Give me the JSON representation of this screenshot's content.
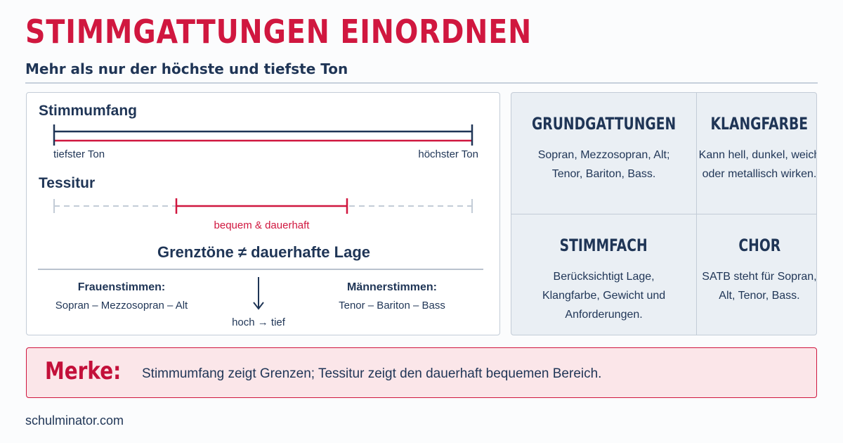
{
  "header": {
    "title": "STIMMGATTUNGEN EINORDNEN",
    "subtitle": "Mehr als nur der höchste und tiefste Ton"
  },
  "range_section": {
    "label": "Stimmumfang",
    "low_label": "tiefster Ton",
    "high_label": "höchster Ton"
  },
  "tessitura_section": {
    "label": "Tessitur",
    "comfortable_label": "bequem & dauerhaft"
  },
  "limits_heading": "Grenztöne ≠ dauerhafte Lage",
  "voices": {
    "women_title": "Frauenstimmen:",
    "women_list": "Sopran – Mezzosopran – Alt",
    "men_title": "Männerstimmen:",
    "men_list": "Tenor – Bariton – Bass",
    "order_label": "hoch → tief"
  },
  "cards": [
    {
      "title": "GRUNDGATTUNGEN",
      "text": "Sopran, Mezzosopran, Alt; Tenor, Bariton, Bass."
    },
    {
      "title": "KLANGFARBE",
      "text": "Kann hell, dunkel, weich oder metallisch wirken."
    },
    {
      "title": "STIMMFACH",
      "text": "Berücksichtigt Lage, Klangfarbe, Gewicht und Anforderungen."
    },
    {
      "title": "CHOR",
      "text": "SATB steht für Sopran, Alt, Tenor, Bass."
    }
  ],
  "note": {
    "label": "Merke:",
    "text": "Stimmumfang zeigt Grenzen; Tessitur zeigt den dauerhaft bequemen Bereich."
  },
  "footer": "schulminator.com",
  "colors": {
    "accent": "#d0173f",
    "navy": "#1f3556",
    "grid_bg": "#eaeff4",
    "note_bg": "#fbe6e9"
  }
}
